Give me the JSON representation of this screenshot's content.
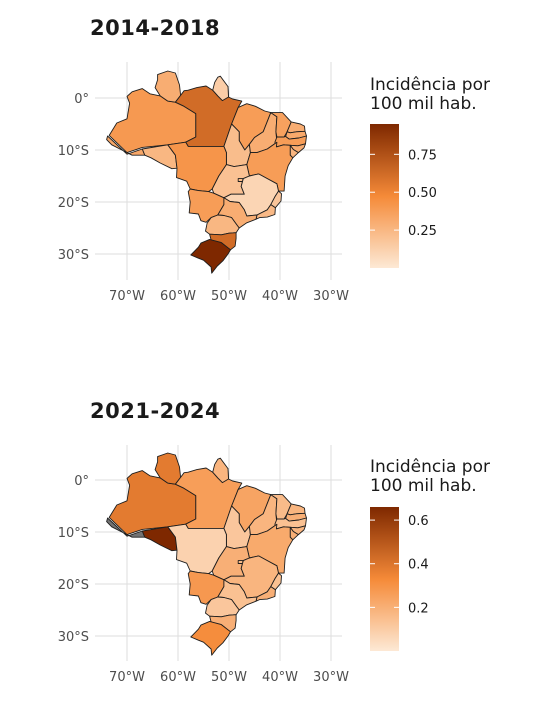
{
  "colors": {
    "low": "#fde9d5",
    "high": "#7e2800",
    "missing": "#737373",
    "grid": "#dedede",
    "border": "#1e1e1e"
  },
  "axes": {
    "lat_ticks": [
      "0°",
      "10°S",
      "20°S",
      "30°S"
    ],
    "lon_ticks": [
      "70°W",
      "60°W",
      "50°W",
      "40°W",
      "30°W"
    ]
  },
  "panels": [
    {
      "title": "2014-2018",
      "legend": {
        "title_line1": "Incidência por",
        "title_line2": "100 mil hab.",
        "ticks": [
          "0.75",
          "0.50",
          "0.25"
        ],
        "max": 0.95
      },
      "regions": [
        {
          "name": "AC",
          "value": 0.33
        },
        {
          "name": "AM",
          "value": 0.4
        },
        {
          "name": "RR",
          "value": 0.3
        },
        {
          "name": "PA",
          "value": 0.62
        },
        {
          "name": "AP",
          "value": 0.14
        },
        {
          "name": "MA",
          "value": 0.38
        },
        {
          "name": "TO",
          "value": 0.22
        },
        {
          "name": "PI",
          "value": 0.3
        },
        {
          "name": "CE",
          "value": 0.36
        },
        {
          "name": "RN",
          "value": 0.3
        },
        {
          "name": "PB",
          "value": 0.32
        },
        {
          "name": "PE",
          "value": 0.38
        },
        {
          "name": "AL",
          "value": 0.3
        },
        {
          "name": "SE",
          "value": 0.26
        },
        {
          "name": "BA",
          "value": 0.38
        },
        {
          "name": "RO",
          "value": 0.25
        },
        {
          "name": "MT",
          "value": 0.42
        },
        {
          "name": "GO",
          "value": 0.2
        },
        {
          "name": "DF",
          "value": 0.22
        },
        {
          "name": "MS",
          "value": 0.38
        },
        {
          "name": "MG",
          "value": 0.1
        },
        {
          "name": "ES",
          "value": 0.18
        },
        {
          "name": "RJ",
          "value": 0.24
        },
        {
          "name": "SP",
          "value": 0.3
        },
        {
          "name": "PR",
          "value": 0.25
        },
        {
          "name": "SC",
          "value": 0.62
        },
        {
          "name": "RS",
          "value": 0.95
        }
      ]
    },
    {
      "title": "2021-2024",
      "legend": {
        "title_line1": "Incidência por",
        "title_line2": "100 mil hab.",
        "ticks": [
          "0.6",
          "0.4",
          "0.2"
        ],
        "max": 0.66
      },
      "regions": [
        {
          "name": "AC",
          "value": null
        },
        {
          "name": "AM",
          "value": 0.38
        },
        {
          "name": "RR",
          "value": 0.38
        },
        {
          "name": "PA",
          "value": 0.26
        },
        {
          "name": "AP",
          "value": 0.18
        },
        {
          "name": "MA",
          "value": 0.24
        },
        {
          "name": "TO",
          "value": 0.12
        },
        {
          "name": "PI",
          "value": 0.18
        },
        {
          "name": "CE",
          "value": 0.16
        },
        {
          "name": "RN",
          "value": 0.18
        },
        {
          "name": "PB",
          "value": 0.2
        },
        {
          "name": "PE",
          "value": 0.14
        },
        {
          "name": "AL",
          "value": 0.18
        },
        {
          "name": "SE",
          "value": 0.2
        },
        {
          "name": "BA",
          "value": 0.22
        },
        {
          "name": "RO",
          "value": 0.66
        },
        {
          "name": "MT",
          "value": 0.08
        },
        {
          "name": "GO",
          "value": 0.2
        },
        {
          "name": "DF",
          "value": 0.16
        },
        {
          "name": "MS",
          "value": 0.28
        },
        {
          "name": "MG",
          "value": 0.18
        },
        {
          "name": "ES",
          "value": 0.14
        },
        {
          "name": "RJ",
          "value": 0.2
        },
        {
          "name": "SP",
          "value": 0.14
        },
        {
          "name": "PR",
          "value": 0.12
        },
        {
          "name": "SC",
          "value": 0.2
        },
        {
          "name": "RS",
          "value": 0.32
        }
      ]
    }
  ]
}
